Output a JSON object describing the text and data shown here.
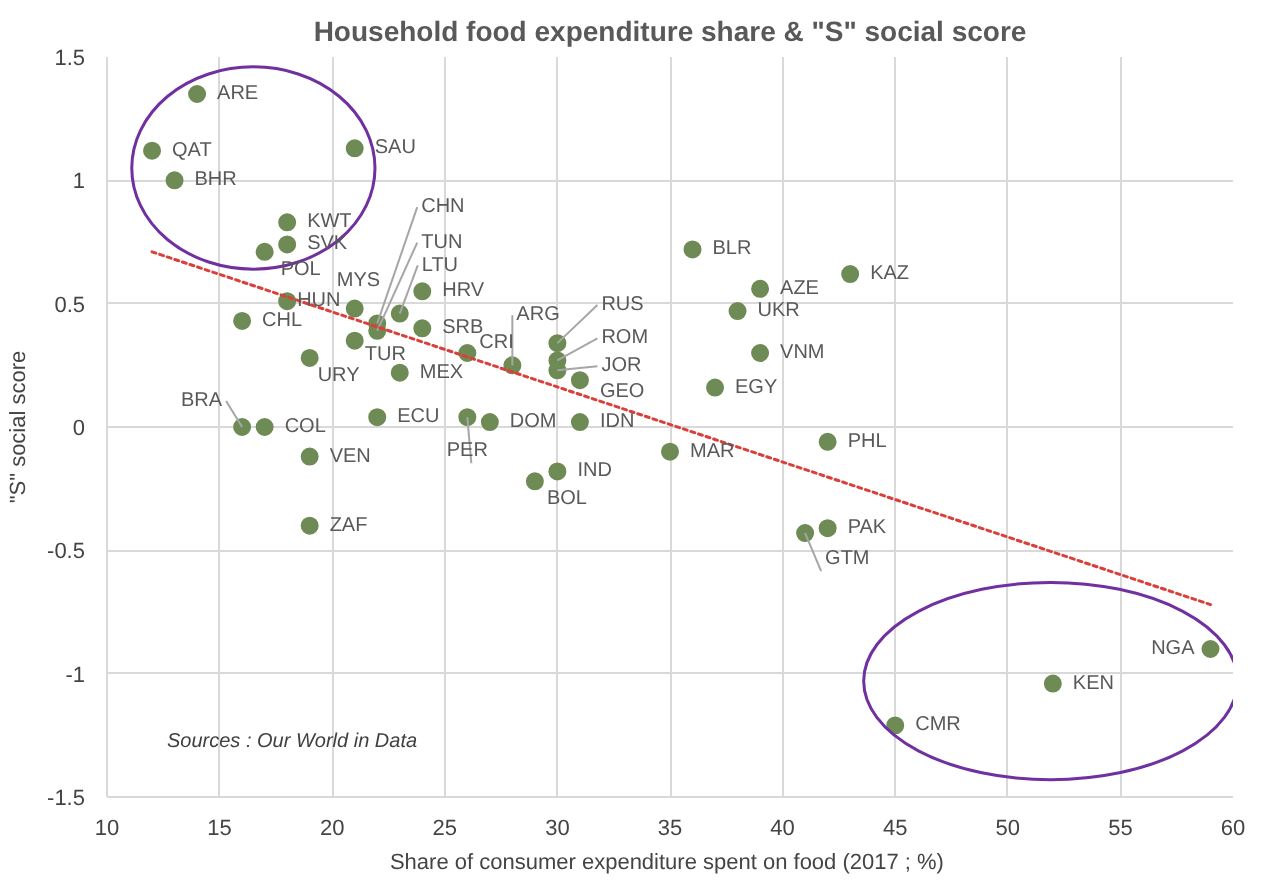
{
  "chart_data": {
    "type": "scatter",
    "title": "Household food expenditure share & \"S\" social score",
    "xlabel": "Share of consumer expenditure  spent on food (2017 ; %)",
    "ylabel": "\"S\" social score",
    "annotations": [
      "Sources : Our World in Data"
    ],
    "xlim": [
      10,
      60
    ],
    "ylim": [
      -1.5,
      1.5
    ],
    "xticks": [
      10,
      15,
      20,
      25,
      30,
      35,
      40,
      45,
      50,
      55,
      60
    ],
    "yticks": [
      -1.5,
      -1,
      -0.5,
      0,
      0.5,
      1,
      1.5
    ],
    "grid": true,
    "marker": "circle",
    "series": [
      {
        "color": "#6e8b55",
        "x": [
          14,
          12,
          13,
          21,
          18,
          18,
          17,
          18,
          16,
          21,
          22,
          22,
          23,
          24,
          24,
          21,
          19,
          23,
          26,
          28,
          16,
          17,
          22,
          26,
          27,
          19,
          19,
          30,
          30,
          30,
          31,
          31,
          30,
          29,
          35,
          36,
          39,
          38,
          43,
          39,
          37,
          42,
          42,
          41,
          45,
          52,
          59
        ],
        "values": [
          1.35,
          1.12,
          1.0,
          1.13,
          0.83,
          0.74,
          0.71,
          0.51,
          0.43,
          0.48,
          0.42,
          0.39,
          0.46,
          0.55,
          0.4,
          0.35,
          0.28,
          0.22,
          0.3,
          0.25,
          0.0,
          0.0,
          0.04,
          0.04,
          0.02,
          -0.12,
          -0.4,
          0.34,
          0.27,
          0.23,
          0.19,
          0.02,
          -0.18,
          -0.22,
          -0.1,
          0.72,
          0.56,
          0.47,
          0.62,
          0.3,
          0.16,
          -0.06,
          -0.41,
          -0.43,
          -1.21,
          -1.04,
          -0.9
        ],
        "value_labels": [
          "ARE",
          "QAT",
          "BHR",
          "SAU",
          "KWT",
          "SVK",
          "POL",
          "HUN",
          "CHL",
          "MYS",
          "CHN",
          "TUN",
          "LTU",
          "HRV",
          "SRB",
          "TUR",
          "URY",
          "MEX",
          "CRI",
          "ARG",
          "BRA",
          "COL",
          "ECU",
          "PER",
          "DOM",
          "VEN",
          "ZAF",
          "RUS",
          "ROM",
          "JOR",
          "GEO",
          "IDN",
          "IND",
          "BOL",
          "MAR",
          "BLR",
          "AZE",
          "UKR",
          "KAZ",
          "VNM",
          "EGY",
          "PHL",
          "PAK",
          "GTM",
          "CMR",
          "KEN",
          "NGA"
        ]
      },
      {
        "type": "line",
        "color": "#d9403a",
        "line_style": "dotted",
        "marker": "none",
        "x": [
          12,
          59
        ],
        "values": [
          0.71,
          -0.72
        ]
      }
    ]
  }
}
